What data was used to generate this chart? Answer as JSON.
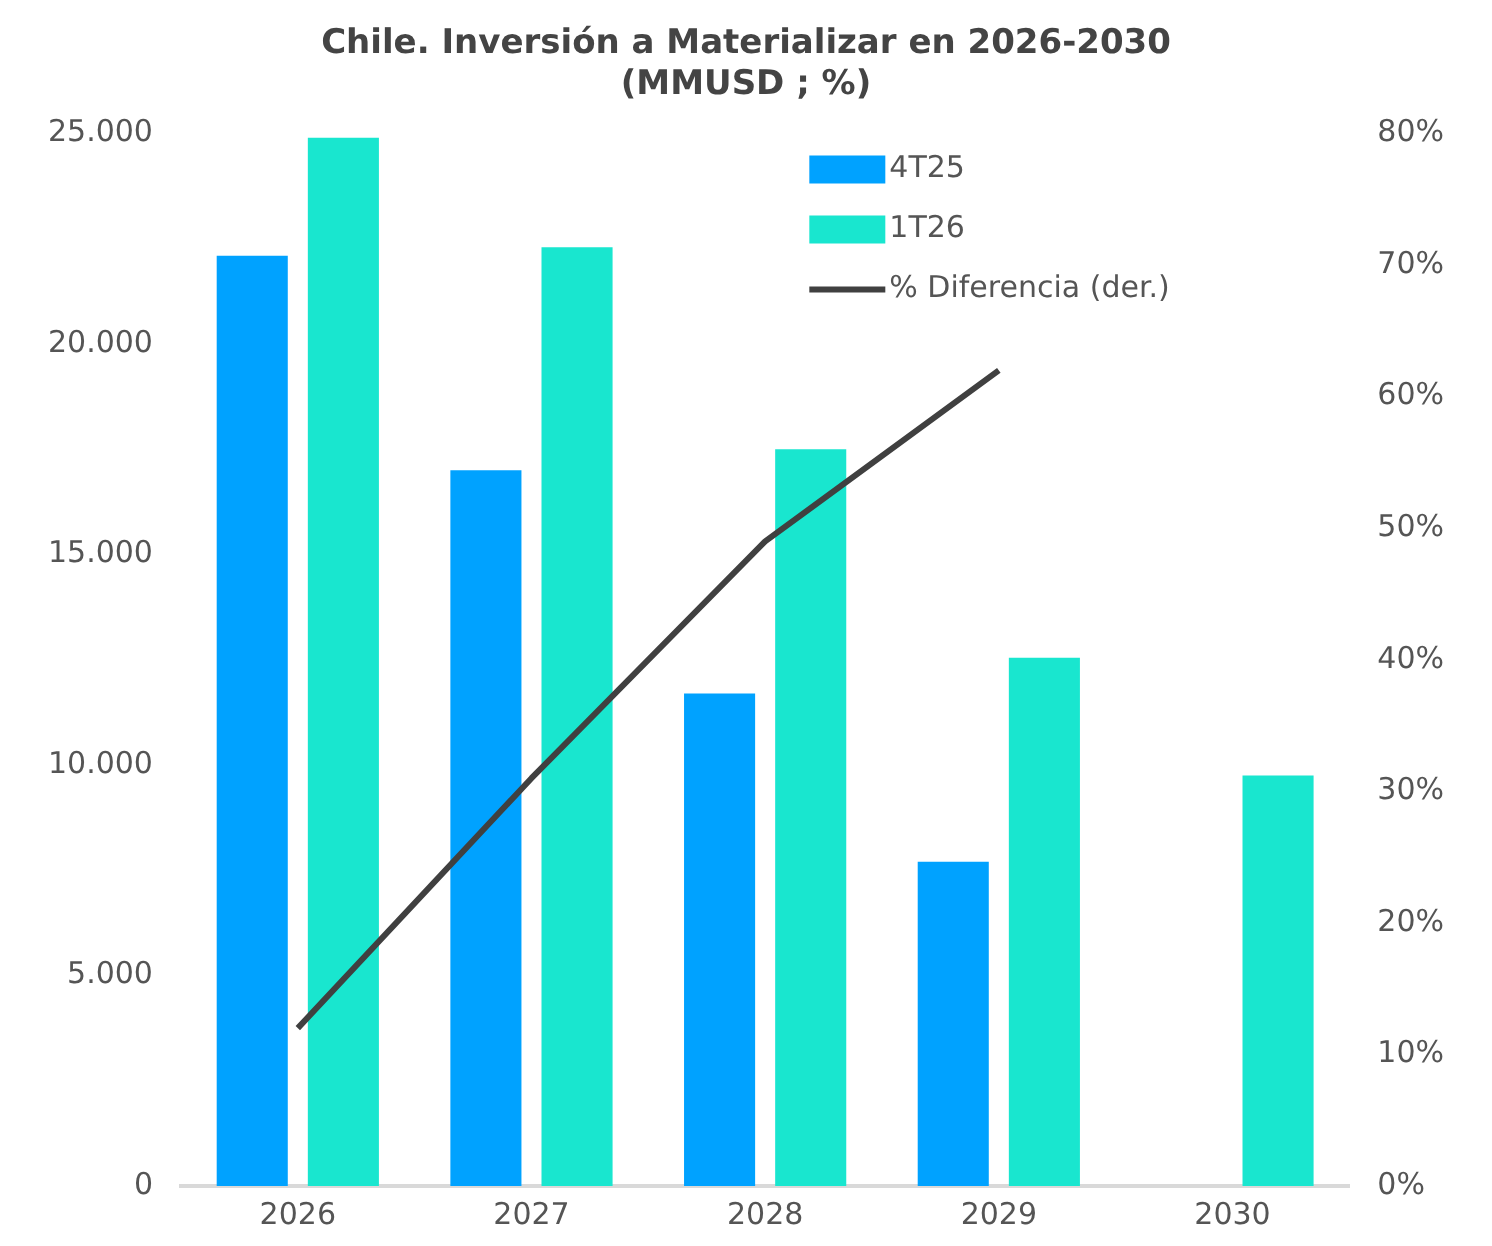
{
  "chart_data": {
    "type": "bar",
    "title": [
      "Chile. Inversión a Materializar en 2026-2030",
      "(MMUSD ; %)"
    ],
    "categories": [
      "2026",
      "2027",
      "2028",
      "2029",
      "2030"
    ],
    "series": [
      {
        "name": "4T25",
        "color": "#00a2ff",
        "values": [
          22100,
          17000,
          11700,
          7700,
          null
        ]
      },
      {
        "name": "1T26",
        "color": "#19e6cf",
        "values": [
          24900,
          22300,
          17500,
          12550,
          9750
        ]
      },
      {
        "name": "% Diferencia (der.)",
        "type": "line",
        "axis": "y2",
        "color": "#404040",
        "values": [
          12,
          31,
          49,
          62,
          null
        ]
      }
    ],
    "ylim": [
      0,
      25000
    ],
    "yticks": [
      {
        "value": 0,
        "label": "0"
      },
      {
        "value": 5000,
        "label": "5.000"
      },
      {
        "value": 10000,
        "label": "10.000"
      },
      {
        "value": 15000,
        "label": "15.000"
      },
      {
        "value": 20000,
        "label": "20.000"
      },
      {
        "value": 25000,
        "label": "25.000"
      }
    ],
    "y2lim": [
      0,
      80
    ],
    "y2ticks": [
      {
        "value": 0,
        "label": "0%"
      },
      {
        "value": 10,
        "label": "10%"
      },
      {
        "value": 20,
        "label": "20%"
      },
      {
        "value": 30,
        "label": "30%"
      },
      {
        "value": 40,
        "label": "40%"
      },
      {
        "value": 50,
        "label": "50%"
      },
      {
        "value": 60,
        "label": "60%"
      },
      {
        "value": 70,
        "label": "70%"
      },
      {
        "value": 80,
        "label": "80%"
      }
    ],
    "grid": false,
    "legend": "top right",
    "marker": "none"
  }
}
